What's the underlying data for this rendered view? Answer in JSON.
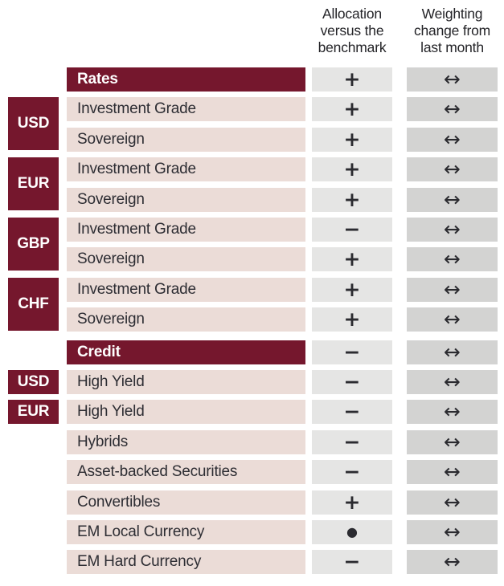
{
  "header": {
    "col_allocation": "Allocation versus the benchmark",
    "col_weighting": "Weighting change from last month"
  },
  "colors": {
    "brand_maroon": "#75172D",
    "row_pink": "#EBDCD7",
    "allocation_cell_gray": "#E5E5E4",
    "weighting_cell_gray": "#D3D3D2",
    "text_dark": "#2D2D33",
    "text_white": "#FFFFFF"
  },
  "symbols": {
    "plus": "+",
    "minus": "−",
    "neutral": "●",
    "unchanged": "↔"
  },
  "table": {
    "rows": [
      {
        "type": "section",
        "label": "Rates",
        "allocation": "plus",
        "weighting": "unchanged"
      },
      {
        "type": "item",
        "currency": "USD",
        "currency_span": 2,
        "label": "Investment Grade",
        "allocation": "plus",
        "weighting": "unchanged"
      },
      {
        "type": "item",
        "label": "Sovereign",
        "allocation": "plus",
        "weighting": "unchanged"
      },
      {
        "type": "item",
        "currency": "EUR",
        "currency_span": 2,
        "label": "Investment Grade",
        "allocation": "plus",
        "weighting": "unchanged"
      },
      {
        "type": "item",
        "label": "Sovereign",
        "allocation": "plus",
        "weighting": "unchanged"
      },
      {
        "type": "item",
        "currency": "GBP",
        "currency_span": 2,
        "label": "Investment Grade",
        "allocation": "minus",
        "weighting": "unchanged"
      },
      {
        "type": "item",
        "label": "Sovereign",
        "allocation": "plus",
        "weighting": "unchanged"
      },
      {
        "type": "item",
        "currency": "CHF",
        "currency_span": 2,
        "label": "Investment Grade",
        "allocation": "plus",
        "weighting": "unchanged"
      },
      {
        "type": "item",
        "label": "Sovereign",
        "allocation": "plus",
        "weighting": "unchanged"
      },
      {
        "type": "section",
        "label": "Credit",
        "allocation": "minus",
        "weighting": "unchanged"
      },
      {
        "type": "item",
        "currency": "USD",
        "currency_span": 1,
        "label": "High Yield",
        "allocation": "minus",
        "weighting": "unchanged"
      },
      {
        "type": "item",
        "currency": "EUR",
        "currency_span": 1,
        "label": "High Yield",
        "allocation": "minus",
        "weighting": "unchanged"
      },
      {
        "type": "item",
        "label": "Hybrids",
        "allocation": "minus",
        "weighting": "unchanged"
      },
      {
        "type": "item",
        "label": "Asset-backed Securities",
        "allocation": "minus",
        "weighting": "unchanged"
      },
      {
        "type": "item",
        "label": "Convertibles",
        "allocation": "plus",
        "weighting": "unchanged"
      },
      {
        "type": "item",
        "label": "EM Local Currency",
        "allocation": "neutral",
        "weighting": "unchanged"
      },
      {
        "type": "item",
        "label": "EM Hard Currency",
        "allocation": "minus",
        "weighting": "unchanged"
      }
    ]
  }
}
